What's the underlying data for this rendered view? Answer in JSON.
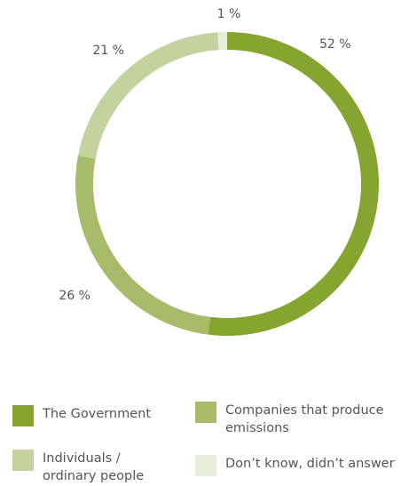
{
  "chart_data": {
    "type": "pie",
    "variant": "donut",
    "categories": [
      "The Government",
      "Companies that produce emissions",
      "Individuals / ordinary people",
      "Don’t know, didn’t answer"
    ],
    "values": [
      52,
      26,
      21,
      1
    ],
    "value_labels": [
      "52 %",
      "26 %",
      "21 %",
      "1 %"
    ],
    "colors": [
      "#86a530",
      "#a8bb6a",
      "#c4d2a0",
      "#e6edd8"
    ],
    "legend": {
      "placement": "bottom",
      "entries": [
        {
          "lines": [
            "The Government"
          ]
        },
        {
          "lines": [
            "Companies that produce",
            "emissions"
          ]
        },
        {
          "lines": [
            "Individuals /",
            "ordinary people"
          ]
        },
        {
          "lines": [
            "Don’t know, didn’t answer"
          ]
        }
      ]
    },
    "title": "",
    "xlabel": "",
    "ylabel": ""
  }
}
